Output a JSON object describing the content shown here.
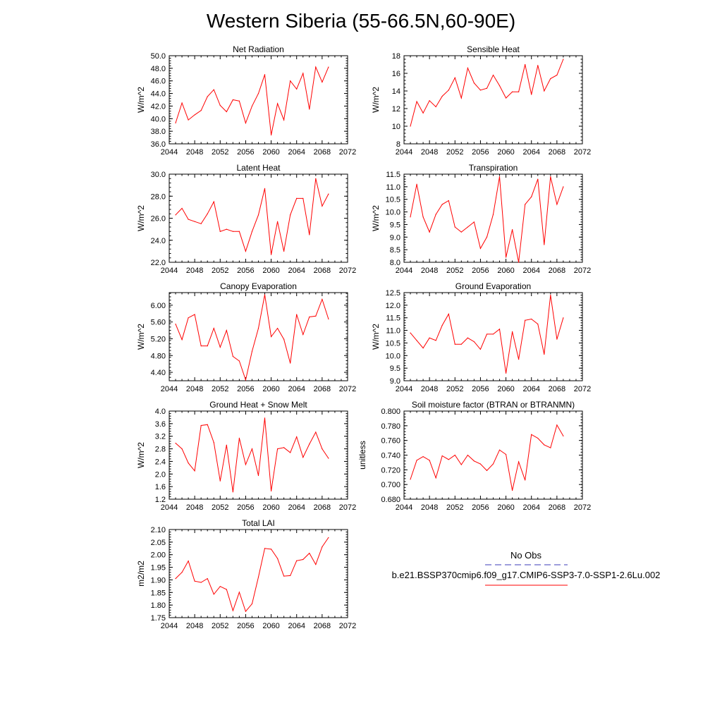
{
  "figure_title": "Western Siberia (55-66.5N,60-90E)",
  "legend": {
    "obs_label": "No Obs",
    "obs_color": "#3b3bb8",
    "model_label": "b.e21.BSSP370cmip6.f09_g17.CMIP6-SSP3-7.0-SSP1-2.6Lu.002",
    "model_color": "#ff0000"
  },
  "chart_data": [
    {
      "type": "line",
      "title": "Net Radiation",
      "ylabel": "W/m^2",
      "xlim": [
        2044,
        2072
      ],
      "xticks": [
        "2044",
        "2048",
        "2052",
        "2056",
        "2060",
        "2064",
        "2068",
        "2072"
      ],
      "ylim": [
        36.0,
        50.0
      ],
      "yticks": [
        "36.0",
        "38.0",
        "40.0",
        "42.0",
        "44.0",
        "46.0",
        "48.0",
        "50.0"
      ],
      "x": [
        2045,
        2046,
        2047,
        2048,
        2049,
        2050,
        2051,
        2052,
        2053,
        2054,
        2055,
        2056,
        2057,
        2058,
        2059,
        2060,
        2061,
        2062,
        2063,
        2064,
        2065,
        2066,
        2067,
        2068,
        2069
      ],
      "series": [
        {
          "values": [
            39.3,
            42.5,
            39.8,
            40.6,
            41.3,
            43.5,
            44.6,
            42.1,
            41.1,
            43.0,
            42.8,
            39.3,
            42.0,
            44.0,
            47.0,
            37.4,
            42.4,
            39.8,
            46.0,
            44.7,
            47.2,
            41.5,
            48.2,
            45.8,
            48.2
          ]
        }
      ]
    },
    {
      "type": "line",
      "title": "Sensible Heat",
      "ylabel": "W/m^2",
      "xlim": [
        2044,
        2072
      ],
      "xticks": [
        "2044",
        "2048",
        "2052",
        "2056",
        "2060",
        "2064",
        "2068",
        "2072"
      ],
      "ylim": [
        8,
        18
      ],
      "yticks": [
        "8",
        "10",
        "12",
        "14",
        "16",
        "18"
      ],
      "x": [
        2045,
        2046,
        2047,
        2048,
        2049,
        2050,
        2051,
        2052,
        2053,
        2054,
        2055,
        2056,
        2057,
        2058,
        2059,
        2060,
        2061,
        2062,
        2063,
        2064,
        2065,
        2066,
        2067,
        2068,
        2069
      ],
      "series": [
        {
          "values": [
            10.0,
            12.8,
            11.5,
            12.9,
            12.2,
            13.4,
            14.1,
            15.5,
            13.2,
            16.6,
            14.9,
            14.1,
            14.3,
            15.8,
            14.6,
            13.2,
            13.9,
            13.9,
            17.0,
            13.6,
            16.9,
            14.0,
            15.4,
            15.8,
            17.6
          ]
        }
      ]
    },
    {
      "type": "line",
      "title": "Latent Heat",
      "ylabel": "W/m^2",
      "xlim": [
        2044,
        2072
      ],
      "xticks": [
        "2044",
        "2048",
        "2052",
        "2056",
        "2060",
        "2064",
        "2068",
        "2072"
      ],
      "ylim": [
        22.0,
        30.0
      ],
      "yticks": [
        "22.0",
        "24.0",
        "26.0",
        "28.0",
        "30.0"
      ],
      "x": [
        2045,
        2046,
        2047,
        2048,
        2049,
        2050,
        2051,
        2052,
        2053,
        2054,
        2055,
        2056,
        2057,
        2058,
        2059,
        2060,
        2061,
        2062,
        2063,
        2064,
        2065,
        2066,
        2067,
        2068,
        2069
      ],
      "series": [
        {
          "values": [
            26.3,
            26.9,
            25.9,
            25.7,
            25.5,
            26.4,
            27.5,
            24.8,
            25.0,
            24.8,
            24.8,
            23.0,
            24.8,
            26.3,
            28.7,
            22.7,
            25.7,
            23.0,
            26.3,
            27.8,
            27.8,
            24.5,
            29.6,
            27.1,
            28.2
          ]
        }
      ]
    },
    {
      "type": "line",
      "title": "Transpiration",
      "ylabel": "W/m^2",
      "xlim": [
        2044,
        2072
      ],
      "xticks": [
        "2044",
        "2048",
        "2052",
        "2056",
        "2060",
        "2064",
        "2068",
        "2072"
      ],
      "ylim": [
        8.0,
        11.5
      ],
      "yticks": [
        "8.0",
        "8.5",
        "9.0",
        "9.5",
        "10.0",
        "10.5",
        "11.0",
        "11.5"
      ],
      "x": [
        2045,
        2046,
        2047,
        2048,
        2049,
        2050,
        2051,
        2052,
        2053,
        2054,
        2055,
        2056,
        2057,
        2058,
        2059,
        2060,
        2061,
        2062,
        2063,
        2064,
        2065,
        2066,
        2067,
        2068,
        2069
      ],
      "series": [
        {
          "values": [
            9.8,
            11.1,
            9.8,
            9.2,
            9.9,
            10.3,
            10.45,
            9.4,
            9.2,
            9.4,
            9.6,
            8.55,
            9.0,
            9.9,
            11.4,
            8.2,
            9.3,
            8.0,
            10.3,
            10.6,
            11.3,
            8.7,
            11.4,
            10.3,
            11.0
          ]
        }
      ]
    },
    {
      "type": "line",
      "title": "Canopy Evaporation",
      "ylabel": "W/m^2",
      "xlim": [
        2044,
        2072
      ],
      "xticks": [
        "2044",
        "2048",
        "2052",
        "2056",
        "2060",
        "2064",
        "2068",
        "2072"
      ],
      "ylim": [
        4.2,
        6.3
      ],
      "yticks": [
        "4.40",
        "4.80",
        "5.20",
        "5.60",
        "6.00"
      ],
      "x": [
        2045,
        2046,
        2047,
        2048,
        2049,
        2050,
        2051,
        2052,
        2053,
        2054,
        2055,
        2056,
        2057,
        2058,
        2059,
        2060,
        2061,
        2062,
        2063,
        2064,
        2065,
        2066,
        2067,
        2068,
        2069
      ],
      "series": [
        {
          "values": [
            5.55,
            5.18,
            5.7,
            5.78,
            5.03,
            5.03,
            5.45,
            5.0,
            5.4,
            4.78,
            4.67,
            4.22,
            4.9,
            5.45,
            6.25,
            5.25,
            5.45,
            5.19,
            4.62,
            5.78,
            5.3,
            5.72,
            5.74,
            6.14,
            5.67
          ]
        }
      ]
    },
    {
      "type": "line",
      "title": "Ground Evaporation",
      "ylabel": "W/m^2",
      "xlim": [
        2044,
        2072
      ],
      "xticks": [
        "2044",
        "2048",
        "2052",
        "2056",
        "2060",
        "2064",
        "2068",
        "2072"
      ],
      "ylim": [
        9.0,
        12.5
      ],
      "yticks": [
        "9.0",
        "9.5",
        "10.0",
        "10.5",
        "11.0",
        "11.5",
        "12.0",
        "12.5"
      ],
      "x": [
        2045,
        2046,
        2047,
        2048,
        2049,
        2050,
        2051,
        2052,
        2053,
        2054,
        2055,
        2056,
        2057,
        2058,
        2059,
        2060,
        2061,
        2062,
        2063,
        2064,
        2065,
        2066,
        2067,
        2068,
        2069
      ],
      "series": [
        {
          "values": [
            10.9,
            10.6,
            10.3,
            10.7,
            10.6,
            11.2,
            11.65,
            10.45,
            10.45,
            10.7,
            10.55,
            10.25,
            10.85,
            10.85,
            11.05,
            9.3,
            10.95,
            9.85,
            11.4,
            11.45,
            11.25,
            10.05,
            12.4,
            10.65,
            11.5
          ]
        }
      ]
    },
    {
      "type": "line",
      "title": "Ground Heat + Snow Melt",
      "ylabel": "W/m^2",
      "xlim": [
        2044,
        2072
      ],
      "xticks": [
        "2044",
        "2048",
        "2052",
        "2056",
        "2060",
        "2064",
        "2068",
        "2072"
      ],
      "ylim": [
        1.2,
        4.0
      ],
      "yticks": [
        "1.2",
        "1.6",
        "2.0",
        "2.4",
        "2.8",
        "3.2",
        "3.6",
        "4.0"
      ],
      "x": [
        2045,
        2046,
        2047,
        2048,
        2049,
        2050,
        2051,
        2052,
        2053,
        2054,
        2055,
        2056,
        2057,
        2058,
        2059,
        2060,
        2061,
        2062,
        2063,
        2064,
        2065,
        2066,
        2067,
        2068,
        2069
      ],
      "series": [
        {
          "values": [
            2.98,
            2.8,
            2.35,
            2.1,
            3.54,
            3.57,
            3.0,
            1.78,
            2.92,
            1.43,
            3.14,
            2.3,
            2.8,
            1.95,
            3.78,
            1.46,
            2.8,
            2.84,
            2.68,
            3.18,
            2.53,
            2.95,
            3.33,
            2.8,
            2.5
          ]
        }
      ]
    },
    {
      "type": "line",
      "title": "Soil moisture factor (BTRAN or BTRANMN)",
      "ylabel": "unitless",
      "xlim": [
        2044,
        2072
      ],
      "xticks": [
        "2044",
        "2048",
        "2052",
        "2056",
        "2060",
        "2064",
        "2068",
        "2072"
      ],
      "ylim": [
        0.68,
        0.8
      ],
      "yticks": [
        "0.680",
        "0.700",
        "0.720",
        "0.740",
        "0.760",
        "0.780",
        "0.800"
      ],
      "x": [
        2045,
        2046,
        2047,
        2048,
        2049,
        2050,
        2051,
        2052,
        2053,
        2054,
        2055,
        2056,
        2057,
        2058,
        2059,
        2060,
        2061,
        2062,
        2063,
        2064,
        2065,
        2066,
        2067,
        2068,
        2069
      ],
      "series": [
        {
          "values": [
            0.707,
            0.733,
            0.738,
            0.733,
            0.709,
            0.739,
            0.734,
            0.74,
            0.727,
            0.74,
            0.732,
            0.728,
            0.719,
            0.728,
            0.747,
            0.741,
            0.692,
            0.731,
            0.706,
            0.768,
            0.763,
            0.754,
            0.75,
            0.781,
            0.766
          ]
        }
      ]
    },
    {
      "type": "line",
      "title": "Total LAI",
      "ylabel": "m2/m2",
      "xlim": [
        2044,
        2072
      ],
      "xticks": [
        "2044",
        "2048",
        "2052",
        "2056",
        "2060",
        "2064",
        "2068",
        "2072"
      ],
      "ylim": [
        1.75,
        2.1
      ],
      "yticks": [
        "1.75",
        "1.80",
        "1.85",
        "1.90",
        "1.95",
        "2.00",
        "2.05",
        "2.10"
      ],
      "x": [
        2045,
        2046,
        2047,
        2048,
        2049,
        2050,
        2051,
        2052,
        2053,
        2054,
        2055,
        2056,
        2057,
        2058,
        2059,
        2060,
        2061,
        2062,
        2063,
        2064,
        2065,
        2066,
        2067,
        2068,
        2069
      ],
      "series": [
        {
          "values": [
            1.905,
            1.93,
            1.975,
            1.895,
            1.89,
            1.905,
            1.843,
            1.874,
            1.862,
            1.778,
            1.851,
            1.775,
            1.805,
            1.911,
            2.025,
            2.022,
            1.985,
            1.915,
            1.917,
            1.976,
            1.981,
            2.006,
            1.961,
            2.031,
            2.068
          ]
        }
      ]
    }
  ]
}
